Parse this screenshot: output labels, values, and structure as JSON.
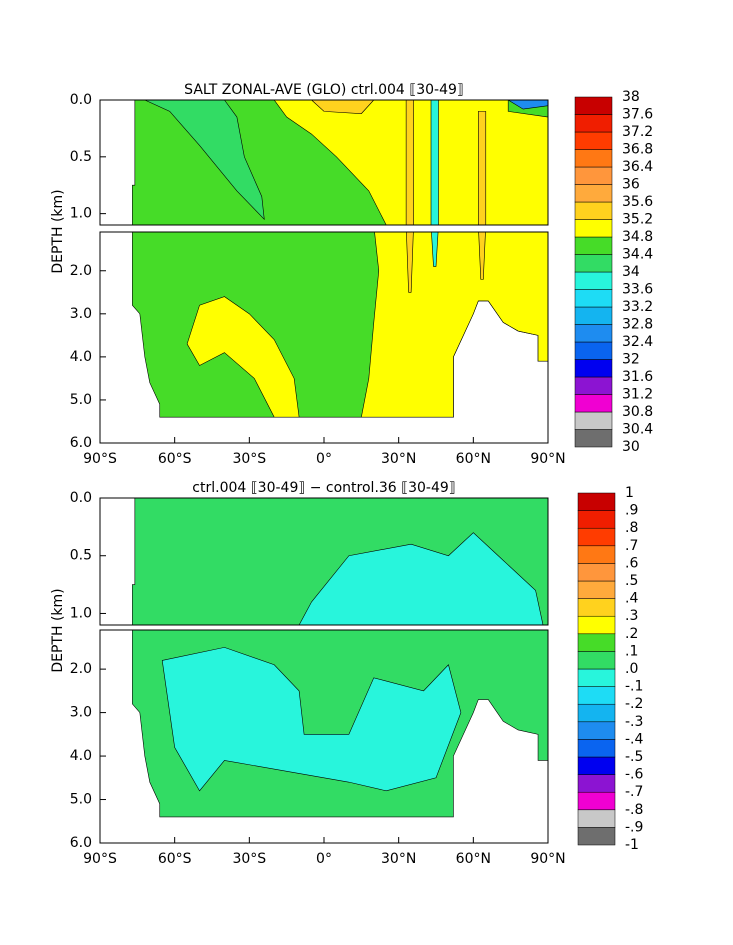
{
  "chart_data": [
    {
      "type": "contour",
      "title": "SALT ZONAL-AVE (GLO) ctrl.004 ⟦30-49⟧",
      "ylabel": "DEPTH (km)",
      "xlim": [
        -90,
        90
      ],
      "xticks": [
        {
          "value": -90,
          "label": "90°S"
        },
        {
          "value": -60,
          "label": "60°S"
        },
        {
          "value": -30,
          "label": "30°S"
        },
        {
          "value": 0,
          "label": "0°"
        },
        {
          "value": 30,
          "label": "30°N"
        },
        {
          "value": 60,
          "label": "60°N"
        },
        {
          "value": 90,
          "label": "90°N"
        }
      ],
      "ylim": [
        6,
        0
      ],
      "yticks": [
        {
          "value": 0,
          "label": "0.0"
        },
        {
          "value": 0.5,
          "label": "0.5"
        },
        {
          "value": 1,
          "label": "1.0"
        },
        {
          "value": 2,
          "label": "2.0"
        },
        {
          "value": 3,
          "label": "3.0"
        },
        {
          "value": 4,
          "label": "4.0"
        },
        {
          "value": 5,
          "label": "5.0"
        },
        {
          "value": 6,
          "label": "6.0"
        }
      ],
      "colorbar": {
        "levels": [
          30,
          30.4,
          30.8,
          31.2,
          31.6,
          32,
          32.4,
          32.8,
          33.2,
          33.6,
          34,
          34.4,
          34.8,
          35.2,
          35.6,
          36,
          36.4,
          36.8,
          37.2,
          37.6,
          38
        ],
        "colors": [
          "#6e6e6e",
          "#c8c8c8",
          "#f000d2",
          "#8c14d2",
          "#0000f0",
          "#0a64f0",
          "#1e8cf0",
          "#14b4f0",
          "#1edcf5",
          "#28f5dc",
          "#32dc64",
          "#46dc28",
          "#ffff00",
          "#ffd21e",
          "#ffaa3c",
          "#ff963c",
          "#ff7814",
          "#ff3c00",
          "#f01e00",
          "#c80000"
        ]
      }
    },
    {
      "type": "contour",
      "title": "ctrl.004 ⟦30-49⟧ − control.36 ⟦30-49⟧",
      "ylabel": "DEPTH (km)",
      "xlim": [
        -90,
        90
      ],
      "xticks": [
        {
          "value": -90,
          "label": "90°S"
        },
        {
          "value": -60,
          "label": "60°S"
        },
        {
          "value": -30,
          "label": "30°S"
        },
        {
          "value": 0,
          "label": "0°"
        },
        {
          "value": 30,
          "label": "30°N"
        },
        {
          "value": 60,
          "label": "60°N"
        },
        {
          "value": 90,
          "label": "90°N"
        }
      ],
      "ylim": [
        6,
        0
      ],
      "yticks": [
        {
          "value": 0,
          "label": "0.0"
        },
        {
          "value": 0.5,
          "label": "0.5"
        },
        {
          "value": 1,
          "label": "1.0"
        },
        {
          "value": 2,
          "label": "2.0"
        },
        {
          "value": 3,
          "label": "3.0"
        },
        {
          "value": 4,
          "label": "4.0"
        },
        {
          "value": 5,
          "label": "5.0"
        },
        {
          "value": 6,
          "label": "6.0"
        }
      ],
      "colorbar": {
        "levels": [
          -1,
          {
            "value": -0.9,
            "label": "-.9"
          },
          {
            "value": -0.8,
            "label": "-.8"
          },
          {
            "value": -0.7,
            "label": "-.7"
          },
          {
            "value": -0.6,
            "label": "-.6"
          },
          {
            "value": -0.5,
            "label": "-.5"
          },
          {
            "value": -0.4,
            "label": "-.4"
          },
          {
            "value": -0.3,
            "label": "-.3"
          },
          {
            "value": -0.2,
            "label": "-.2"
          },
          {
            "value": -0.1,
            "label": "-.1"
          },
          {
            "value": 0,
            "label": ".0"
          },
          {
            "value": 0.1,
            "label": ".1"
          },
          {
            "value": 0.2,
            "label": ".2"
          },
          {
            "value": 0.3,
            "label": ".3"
          },
          {
            "value": 0.4,
            "label": ".4"
          },
          {
            "value": 0.5,
            "label": ".5"
          },
          {
            "value": 0.6,
            "label": ".6"
          },
          {
            "value": 0.7,
            "label": ".7"
          },
          {
            "value": 0.8,
            "label": ".8"
          },
          {
            "value": 0.9,
            "label": ".9"
          },
          1
        ],
        "colors": [
          "#6e6e6e",
          "#c8c8c8",
          "#f000d2",
          "#8c14d2",
          "#0000f0",
          "#0a64f0",
          "#1e8cf0",
          "#14b4f0",
          "#1edcf5",
          "#28f5dc",
          "#32dc64",
          "#46dc28",
          "#ffff00",
          "#ffd21e",
          "#ffaa3c",
          "#ff963c",
          "#ff7814",
          "#ff3c00",
          "#f01e00",
          "#c80000"
        ]
      }
    }
  ]
}
